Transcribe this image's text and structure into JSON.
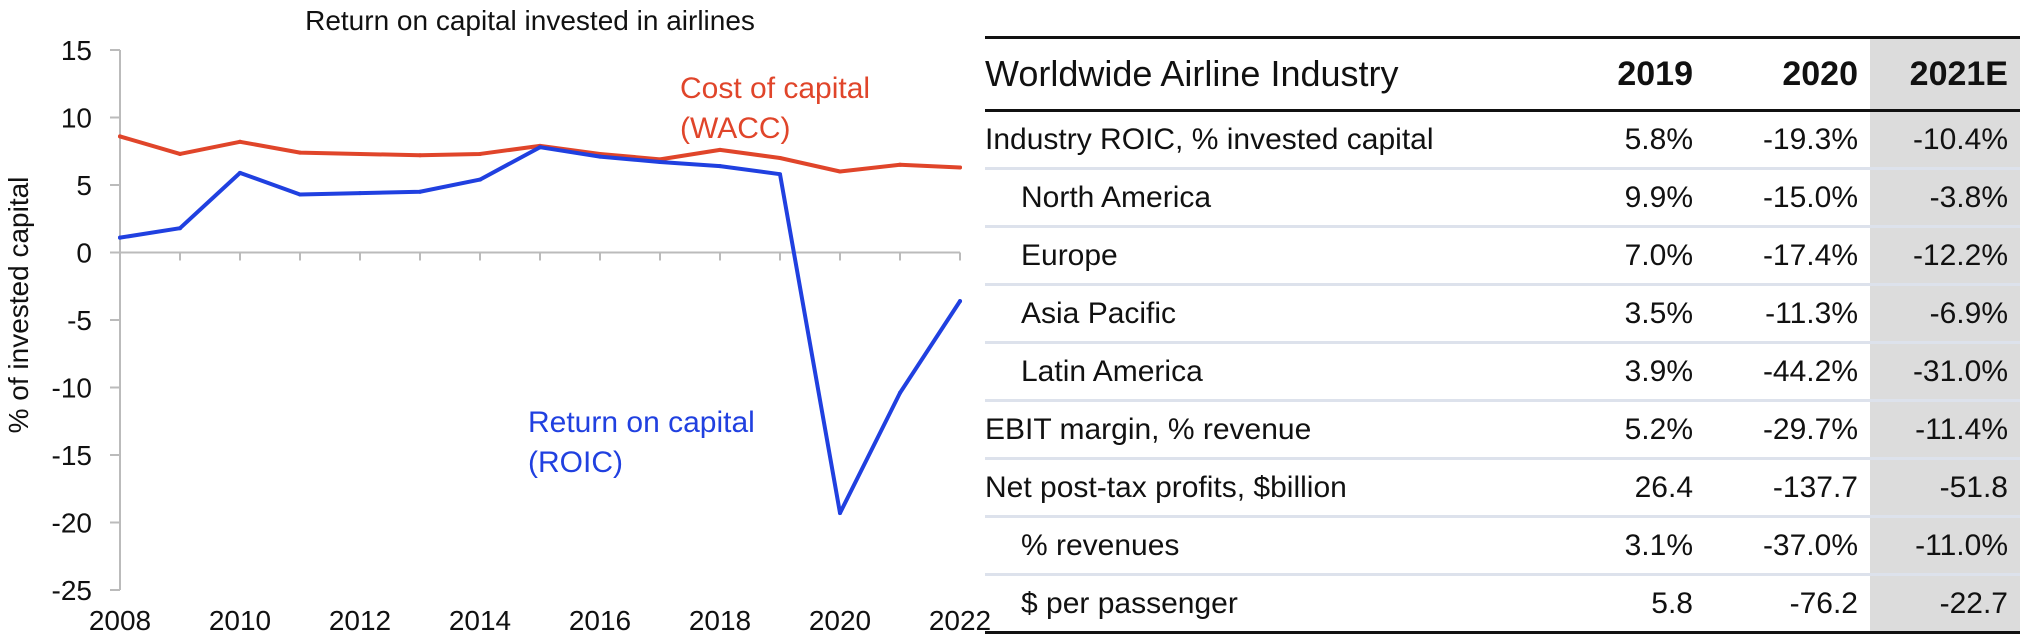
{
  "chart_data": {
    "type": "line",
    "title": "Return on capital invested in airlines",
    "xlabel": "",
    "ylabel": "% of invested capital",
    "xlim": [
      2008,
      2022
    ],
    "ylim": [
      -25,
      15
    ],
    "x_ticks": [
      "2008",
      "2010",
      "2012",
      "2014",
      "2016",
      "2018",
      "2020",
      "2022"
    ],
    "y_ticks": [
      "15",
      "10",
      "5",
      "0",
      "-5",
      "-10",
      "-15",
      "-20",
      "-25"
    ],
    "x": [
      2008,
      2009,
      2010,
      2011,
      2012,
      2013,
      2014,
      2015,
      2016,
      2017,
      2018,
      2019,
      2020,
      2021,
      2022
    ],
    "series": [
      {
        "name": "Cost of capital (WACC)",
        "color": "#e0452a",
        "values": [
          8.6,
          7.3,
          8.2,
          7.4,
          7.3,
          7.2,
          7.3,
          7.9,
          7.3,
          6.9,
          7.6,
          7.0,
          6.0,
          6.5,
          6.3
        ]
      },
      {
        "name": "Return on capital (ROIC)",
        "color": "#2040e0",
        "values": [
          1.1,
          1.8,
          5.9,
          4.3,
          4.4,
          4.5,
          5.4,
          7.8,
          7.1,
          6.7,
          6.4,
          5.8,
          -19.3,
          -10.4,
          -3.6
        ]
      }
    ],
    "annotations": [
      {
        "lines": [
          "Cost of capital",
          "(WACC)"
        ],
        "color": "#e0452a"
      },
      {
        "lines": [
          "Return on capital",
          "(ROIC)"
        ],
        "color": "#2040e0"
      }
    ],
    "grid": false
  },
  "table": {
    "header_label": "Worldwide Airline Industry",
    "years": [
      "2019",
      "2020",
      "2021E"
    ],
    "highlight_color": "#dcdcdc",
    "rows": [
      {
        "label": "Industry ROIC, % invested capital",
        "indent": false,
        "values": [
          "5.8%",
          "-19.3%",
          "-10.4%"
        ]
      },
      {
        "label": "North America",
        "indent": true,
        "values": [
          "9.9%",
          "-15.0%",
          "-3.8%"
        ]
      },
      {
        "label": "Europe",
        "indent": true,
        "values": [
          "7.0%",
          "-17.4%",
          "-12.2%"
        ]
      },
      {
        "label": "Asia Pacific",
        "indent": true,
        "values": [
          "3.5%",
          "-11.3%",
          "-6.9%"
        ]
      },
      {
        "label": "Latin America",
        "indent": true,
        "values": [
          "3.9%",
          "-44.2%",
          "-31.0%"
        ]
      },
      {
        "label": "EBIT margin, % revenue",
        "indent": false,
        "values": [
          "5.2%",
          "-29.7%",
          "-11.4%"
        ]
      },
      {
        "label": "Net post-tax profits, $billion",
        "indent": false,
        "values": [
          "26.4",
          "-137.7",
          "-51.8"
        ]
      },
      {
        "label": "% revenues",
        "indent": true,
        "values": [
          "3.1%",
          "-37.0%",
          "-11.0%"
        ]
      },
      {
        "label": "$ per passenger",
        "indent": true,
        "values": [
          "5.8",
          "-76.2",
          "-22.7"
        ]
      }
    ]
  }
}
